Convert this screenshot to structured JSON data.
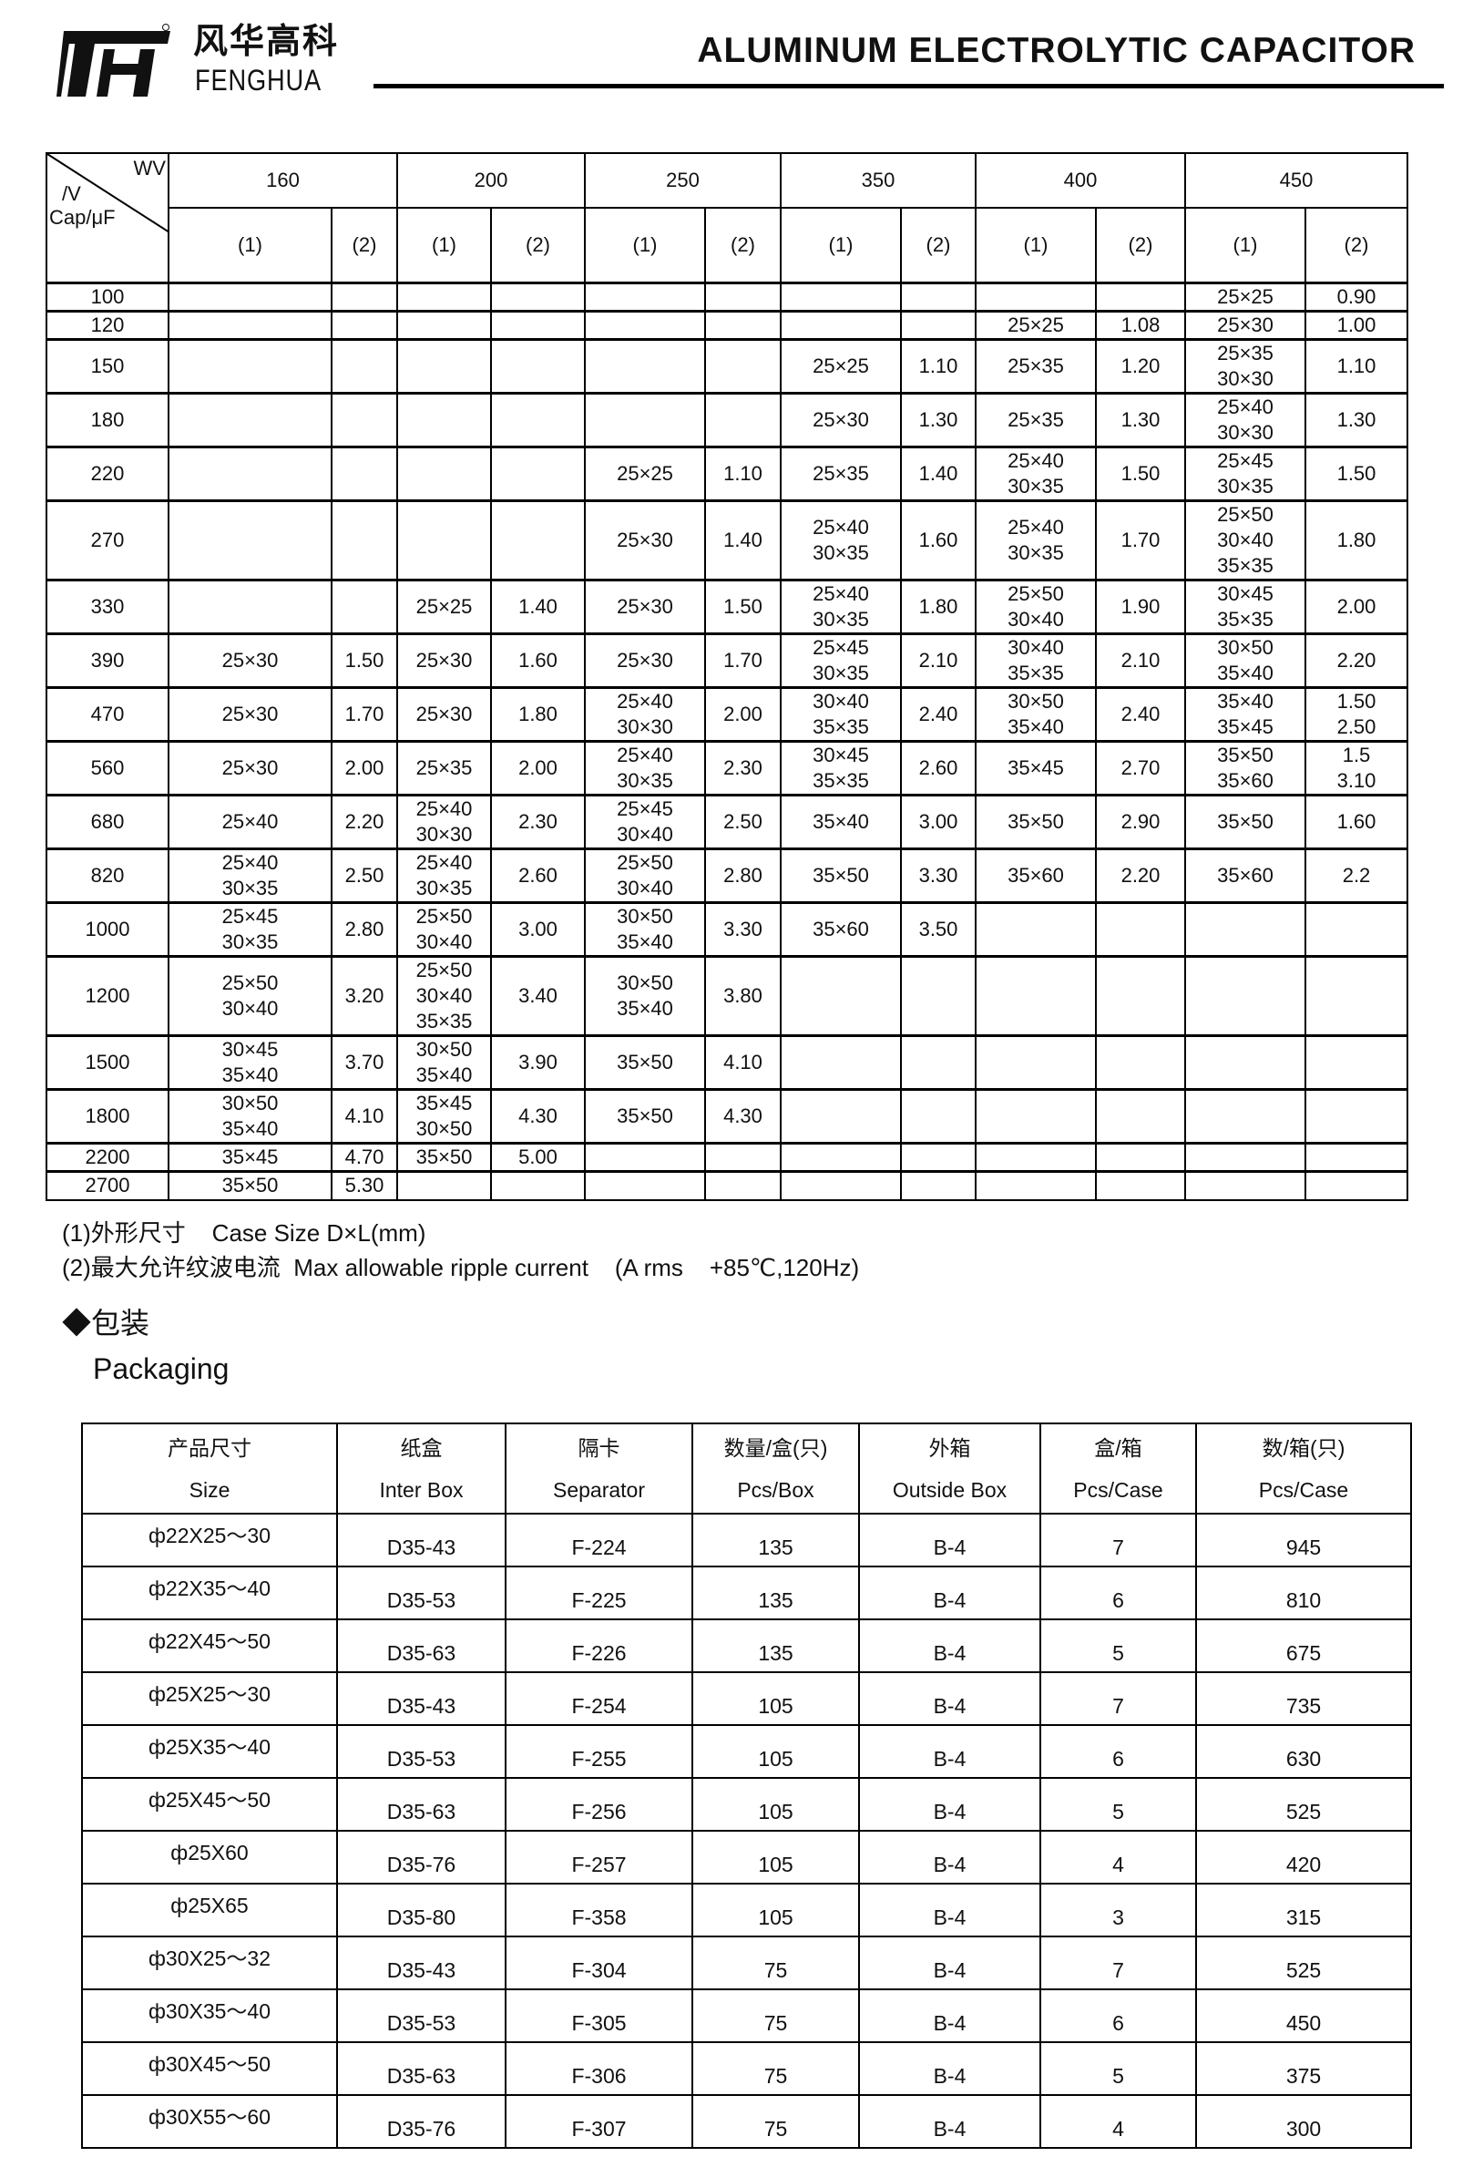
{
  "header": {
    "brand_cn": "风华高科",
    "brand_en": "FENGHUA",
    "title": "ALUMINUM ELECTROLYTIC CAPACITOR"
  },
  "spec": {
    "corner": {
      "wv": "WV",
      "v": "/V",
      "cap": "Cap/μF"
    },
    "voltages": [
      "160",
      "200",
      "250",
      "350",
      "400",
      "450"
    ],
    "sub": [
      "(1)",
      "(2)"
    ],
    "rows": [
      {
        "cap": "100",
        "cells": [
          "",
          "",
          "",
          "",
          "",
          "",
          "",
          "",
          "",
          "",
          "25×25",
          "0.90"
        ]
      },
      {
        "cap": "120",
        "cells": [
          "",
          "",
          "",
          "",
          "",
          "",
          "",
          "",
          "25×25",
          "1.08",
          "25×30",
          "1.00"
        ]
      },
      {
        "cap": "150",
        "cells": [
          "",
          "",
          "",
          "",
          "",
          "",
          "25×25",
          "1.10",
          "25×35",
          "1.20",
          "25×35\n30×30",
          "1.10"
        ]
      },
      {
        "cap": "180",
        "cells": [
          "",
          "",
          "",
          "",
          "",
          "",
          "25×30",
          "1.30",
          "25×35",
          "1.30",
          "25×40\n30×30",
          "1.30"
        ]
      },
      {
        "cap": "220",
        "cells": [
          "",
          "",
          "",
          "",
          "25×25",
          "1.10",
          "25×35",
          "1.40",
          "25×40\n30×35",
          "1.50",
          "25×45\n30×35",
          "1.50"
        ]
      },
      {
        "cap": "270",
        "cells": [
          "",
          "",
          "",
          "",
          "25×30",
          "1.40",
          "25×40\n30×35",
          "1.60",
          "25×40\n30×35",
          "1.70",
          "25×50\n30×40\n35×35",
          "1.80"
        ]
      },
      {
        "cap": "330",
        "cells": [
          "",
          "",
          "25×25",
          "1.40",
          "25×30",
          "1.50",
          "25×40\n30×35",
          "1.80",
          "25×50\n30×40",
          "1.90",
          "30×45\n35×35",
          "2.00"
        ]
      },
      {
        "cap": "390",
        "cells": [
          "25×30",
          "1.50",
          "25×30",
          "1.60",
          "25×30",
          "1.70",
          "25×45\n30×35",
          "2.10",
          "30×40\n35×35",
          "2.10",
          "30×50\n35×40",
          "2.20"
        ]
      },
      {
        "cap": "470",
        "cells": [
          "25×30",
          "1.70",
          "25×30",
          "1.80",
          "25×40\n30×30",
          "2.00",
          "30×40\n35×35",
          "2.40",
          "30×50\n35×40",
          "2.40",
          "35×40\n35×45",
          "1.50\n2.50"
        ]
      },
      {
        "cap": "560",
        "cells": [
          "25×30",
          "2.00",
          "25×35",
          "2.00",
          "25×40\n30×35",
          "2.30",
          "30×45\n35×35",
          "2.60",
          "35×45",
          "2.70",
          "35×50\n35×60",
          "1.5\n3.10"
        ]
      },
      {
        "cap": "680",
        "cells": [
          "25×40",
          "2.20",
          "25×40\n30×30",
          "2.30",
          "25×45\n30×40",
          "2.50",
          "35×40",
          "3.00",
          "35×50",
          "2.90",
          "35×50",
          "1.60"
        ]
      },
      {
        "cap": "820",
        "cells": [
          "25×40\n30×35",
          "2.50",
          "25×40\n30×35",
          "2.60",
          "25×50\n30×40",
          "2.80",
          "35×50",
          "3.30",
          "35×60",
          "2.20",
          "35×60",
          "2.2"
        ]
      },
      {
        "cap": "1000",
        "cells": [
          "25×45\n30×35",
          "2.80",
          "25×50\n30×40",
          "3.00",
          "30×50\n35×40",
          "3.30",
          "35×60",
          "3.50",
          "",
          "",
          "",
          ""
        ]
      },
      {
        "cap": "1200",
        "cells": [
          "25×50\n30×40",
          "3.20",
          "25×50\n30×40\n35×35",
          "3.40",
          "30×50\n35×40",
          "3.80",
          "",
          "",
          "",
          "",
          "",
          ""
        ]
      },
      {
        "cap": "1500",
        "cells": [
          "30×45\n35×40",
          "3.70",
          "30×50\n35×40",
          "3.90",
          "35×50",
          "4.10",
          "",
          "",
          "",
          "",
          "",
          ""
        ]
      },
      {
        "cap": "1800",
        "cells": [
          "30×50\n35×40",
          "4.10",
          "35×45\n30×50",
          "4.30",
          "35×50",
          "4.30",
          "",
          "",
          "",
          "",
          "",
          ""
        ]
      },
      {
        "cap": "2200",
        "cells": [
          "35×45",
          "4.70",
          "35×50",
          "5.00",
          "",
          "",
          "",
          "",
          "",
          "",
          "",
          ""
        ]
      },
      {
        "cap": "2700",
        "cells": [
          "35×50",
          "5.30",
          "",
          "",
          "",
          "",
          "",
          "",
          "",
          "",
          "",
          ""
        ]
      }
    ]
  },
  "notes": [
    "(1)外形尺寸    Case Size D×L(mm)",
    "(2)最大允许纹波电流  Max allowable ripple current    (A rms    +85℃,120Hz)"
  ],
  "packaging": {
    "heading_cn": "◆包装",
    "heading_en": "Packaging",
    "headers": [
      [
        "产品尺寸",
        "Size"
      ],
      [
        "纸盒",
        "Inter Box"
      ],
      [
        "隔卡",
        "Separator"
      ],
      [
        "数量/盒(只)",
        "Pcs/Box"
      ],
      [
        "外箱",
        "Outside Box"
      ],
      [
        "盒/箱",
        "Pcs/Case"
      ],
      [
        "数/箱(只)",
        "Pcs/Case"
      ]
    ],
    "rows": [
      [
        "ф22X25～30",
        "D35-43",
        "F-224",
        "135",
        "B-4",
        "7",
        "945"
      ],
      [
        "ф22X35～40",
        "D35-53",
        "F-225",
        "135",
        "B-4",
        "6",
        "810"
      ],
      [
        "ф22X45～50",
        "D35-63",
        "F-226",
        "135",
        "B-4",
        "5",
        "675"
      ],
      [
        "ф25X25～30",
        "D35-43",
        "F-254",
        "105",
        "B-4",
        "7",
        "735"
      ],
      [
        "ф25X35～40",
        "D35-53",
        "F-255",
        "105",
        "B-4",
        "6",
        "630"
      ],
      [
        "ф25X45～50",
        "D35-63",
        "F-256",
        "105",
        "B-4",
        "5",
        "525"
      ],
      [
        "ф25X60",
        "D35-76",
        "F-257",
        "105",
        "B-4",
        "4",
        "420"
      ],
      [
        "ф25X65",
        "D35-80",
        "F-358",
        "105",
        "B-4",
        "3",
        "315"
      ],
      [
        "ф30X25～32",
        "D35-43",
        "F-304",
        "75",
        "B-4",
        "7",
        "525"
      ],
      [
        "ф30X35～40",
        "D35-53",
        "F-305",
        "75",
        "B-4",
        "6",
        "450"
      ],
      [
        "ф30X45～50",
        "D35-63",
        "F-306",
        "75",
        "B-4",
        "5",
        "375"
      ],
      [
        "ф30X55～60",
        "D35-76",
        "F-307",
        "75",
        "B-4",
        "4",
        "300"
      ]
    ]
  }
}
